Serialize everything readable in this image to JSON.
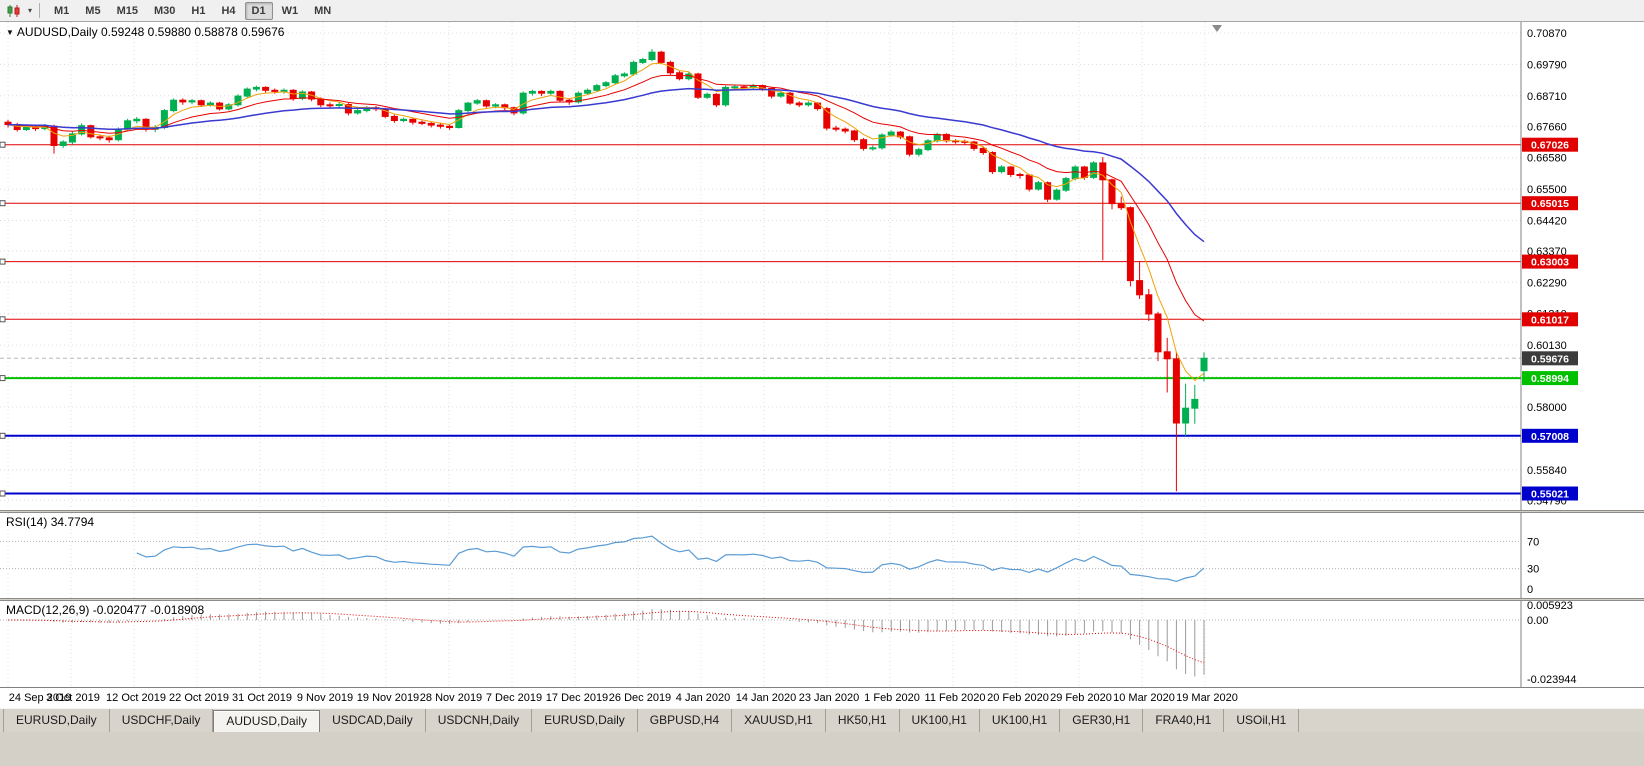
{
  "toolbar": {
    "chart_type_icon": "candlestick-chart-icon",
    "dropdown_icon": "chevron-down-icon",
    "timeframes": [
      {
        "label": "M1",
        "active": false
      },
      {
        "label": "M5",
        "active": false
      },
      {
        "label": "M15",
        "active": false
      },
      {
        "label": "M30",
        "active": false
      },
      {
        "label": "H1",
        "active": false
      },
      {
        "label": "H4",
        "active": false
      },
      {
        "label": "D1",
        "active": true
      },
      {
        "label": "W1",
        "active": false
      },
      {
        "label": "MN",
        "active": false
      }
    ]
  },
  "chart": {
    "symbol": "AUDUSD,Daily",
    "ohlc": "0.59248 0.59880 0.58878 0.59676",
    "open": "0.59248",
    "high": "0.59880",
    "low": "0.58878",
    "close": "0.59676"
  },
  "rsi": {
    "title": "RSI(14)",
    "value": "34.7794",
    "axis_labels": [
      70,
      30,
      0
    ],
    "levels": [
      70,
      30
    ],
    "color": "#5a9bd4"
  },
  "macd": {
    "title": "MACD(12,26,9)",
    "values": "-0.020477 -0.018908",
    "main_value": "-0.020477",
    "signal_value": "-0.018908",
    "axis_labels": [
      "0.005923",
      "0.00",
      "-0.023944"
    ],
    "histogram_color": "#9a9a9a",
    "signal_color": "#e60000"
  },
  "time_axis": {
    "dates": [
      "24 Sep 2019",
      "3 Oct 2019",
      "12 Oct 2019",
      "22 Oct 2019",
      "31 Oct 2019",
      "9 Nov 2019",
      "19 Nov 2019",
      "28 Nov 2019",
      "7 Dec 2019",
      "17 Dec 2019",
      "26 Dec 2019",
      "4 Jan 2020",
      "14 Jan 2020",
      "23 Jan 2020",
      "1 Feb 2020",
      "11 Feb 2020",
      "20 Feb 2020",
      "29 Feb 2020",
      "10 Mar 2020",
      "19 Mar 2020"
    ]
  },
  "tabs": [
    {
      "label": "EURUSD,Daily",
      "active": false
    },
    {
      "label": "USDCHF,Daily",
      "active": false
    },
    {
      "label": "AUDUSD,Daily",
      "active": true
    },
    {
      "label": "USDCAD,Daily",
      "active": false
    },
    {
      "label": "USDCNH,Daily",
      "active": false
    },
    {
      "label": "EURUSD,Daily",
      "active": false
    },
    {
      "label": "GBPUSD,H4",
      "active": false
    },
    {
      "label": "XAUUSD,H1",
      "active": false
    },
    {
      "label": "HK50,H1",
      "active": false
    },
    {
      "label": "UK100,H1",
      "active": false
    },
    {
      "label": "UK100,H1",
      "active": false
    },
    {
      "label": "GER30,H1",
      "active": false
    },
    {
      "label": "FRA40,H1",
      "active": false
    },
    {
      "label": "USOil,H1",
      "active": false
    }
  ],
  "chart_data": {
    "type": "candlestick",
    "symbol": "AUDUSD",
    "timeframe": "Daily",
    "up_color": "#00b050",
    "down_color": "#e60000",
    "grid_color": "#dcdcdc",
    "price_axis_labels": [
      0.7087,
      0.6979,
      0.6871,
      0.6766,
      0.6658,
      0.655,
      0.6442,
      0.6337,
      0.6229,
      0.6121,
      0.6013,
      0.5905,
      0.58,
      0.5692,
      0.5584,
      0.5479
    ],
    "bid_line": {
      "value": 0.59676,
      "label": "0.59676",
      "badge_color": "#3c3c3c"
    },
    "hlines": [
      {
        "value": 0.67026,
        "label": "0.67026",
        "color": "#e00000",
        "width": 1
      },
      {
        "value": 0.65015,
        "label": "0.65015",
        "color": "#e00000",
        "width": 1
      },
      {
        "value": 0.63003,
        "label": "0.63003",
        "color": "#e00000",
        "width": 1
      },
      {
        "value": 0.61017,
        "label": "0.61017",
        "color": "#e00000",
        "width": 1
      },
      {
        "value": 0.58994,
        "label": "0.58994",
        "color": "#00c000",
        "width": 2
      },
      {
        "value": 0.57008,
        "label": "0.57008",
        "color": "#0000cd",
        "width": 2
      },
      {
        "value": 0.55021,
        "label": "0.55021",
        "color": "#0000cd",
        "width": 2
      }
    ],
    "moving_averages": [
      {
        "name": "fast",
        "period": 5,
        "color": "#efa30a",
        "width": 1
      },
      {
        "name": "mid",
        "period": 13,
        "color": "#e60000",
        "width": 1
      },
      {
        "name": "slow",
        "period": 34,
        "color": "#3a3ad0",
        "width": 1.5
      }
    ],
    "candles": [
      [
        0.678,
        0.6788,
        0.6762,
        0.6772
      ],
      [
        0.6772,
        0.6778,
        0.6748,
        0.6755
      ],
      [
        0.6755,
        0.677,
        0.675,
        0.6762
      ],
      [
        0.6762,
        0.6768,
        0.675,
        0.6758
      ],
      [
        0.6758,
        0.6774,
        0.6752,
        0.6766
      ],
      [
        0.6766,
        0.6772,
        0.6672,
        0.67
      ],
      [
        0.67,
        0.6718,
        0.6692,
        0.6712
      ],
      [
        0.6712,
        0.6748,
        0.6704,
        0.674
      ],
      [
        0.674,
        0.6776,
        0.6734,
        0.6768
      ],
      [
        0.6768,
        0.6772,
        0.6724,
        0.673
      ],
      [
        0.673,
        0.6738,
        0.6718,
        0.6726
      ],
      [
        0.6726,
        0.6734,
        0.671,
        0.672
      ],
      [
        0.672,
        0.6762,
        0.6714,
        0.6756
      ],
      [
        0.6756,
        0.6792,
        0.675,
        0.6785
      ],
      [
        0.6785,
        0.6798,
        0.6776,
        0.679
      ],
      [
        0.679,
        0.6794,
        0.6748,
        0.6756
      ],
      [
        0.6756,
        0.677,
        0.6746,
        0.6762
      ],
      [
        0.6762,
        0.6826,
        0.6756,
        0.682
      ],
      [
        0.682,
        0.6862,
        0.6814,
        0.6856
      ],
      [
        0.6856,
        0.6862,
        0.684,
        0.685
      ],
      [
        0.685,
        0.686,
        0.6842,
        0.6854
      ],
      [
        0.6854,
        0.6858,
        0.6832,
        0.684
      ],
      [
        0.684,
        0.6852,
        0.6834,
        0.6846
      ],
      [
        0.6846,
        0.685,
        0.682,
        0.6826
      ],
      [
        0.6826,
        0.6846,
        0.682,
        0.684
      ],
      [
        0.684,
        0.6876,
        0.6834,
        0.687
      ],
      [
        0.687,
        0.69,
        0.6864,
        0.6894
      ],
      [
        0.6894,
        0.6906,
        0.6886,
        0.69
      ],
      [
        0.69,
        0.6904,
        0.6882,
        0.689
      ],
      [
        0.689,
        0.6896,
        0.6878,
        0.6886
      ],
      [
        0.6886,
        0.6896,
        0.6878,
        0.689
      ],
      [
        0.689,
        0.6894,
        0.6854,
        0.6862
      ],
      [
        0.6862,
        0.689,
        0.6856,
        0.6884
      ],
      [
        0.6884,
        0.6888,
        0.6852,
        0.686
      ],
      [
        0.686,
        0.6866,
        0.6832,
        0.684
      ],
      [
        0.684,
        0.6848,
        0.683,
        0.6838
      ],
      [
        0.6838,
        0.685,
        0.6832,
        0.6841
      ],
      [
        0.6841,
        0.6846,
        0.6804,
        0.6812
      ],
      [
        0.6812,
        0.6826,
        0.6806,
        0.682
      ],
      [
        0.682,
        0.6836,
        0.6814,
        0.683
      ],
      [
        0.683,
        0.6836,
        0.6818,
        0.6826
      ],
      [
        0.6826,
        0.683,
        0.6794,
        0.68
      ],
      [
        0.68,
        0.6806,
        0.6778,
        0.6786
      ],
      [
        0.6786,
        0.6796,
        0.678,
        0.679
      ],
      [
        0.679,
        0.6794,
        0.6772,
        0.678
      ],
      [
        0.678,
        0.6786,
        0.677,
        0.6776
      ],
      [
        0.6776,
        0.6782,
        0.6762,
        0.677
      ],
      [
        0.677,
        0.6776,
        0.6758,
        0.6766
      ],
      [
        0.6766,
        0.6772,
        0.6754,
        0.6762
      ],
      [
        0.6762,
        0.6826,
        0.6758,
        0.682
      ],
      [
        0.682,
        0.685,
        0.6814,
        0.6846
      ],
      [
        0.6846,
        0.686,
        0.684,
        0.6854
      ],
      [
        0.6854,
        0.6858,
        0.683,
        0.6836
      ],
      [
        0.6836,
        0.6846,
        0.6828,
        0.684
      ],
      [
        0.684,
        0.6844,
        0.6822,
        0.683
      ],
      [
        0.683,
        0.6834,
        0.6804,
        0.6812
      ],
      [
        0.6812,
        0.6886,
        0.6806,
        0.688
      ],
      [
        0.688,
        0.6892,
        0.6872,
        0.6886
      ],
      [
        0.6886,
        0.689,
        0.687,
        0.688
      ],
      [
        0.688,
        0.6892,
        0.6874,
        0.6886
      ],
      [
        0.6886,
        0.689,
        0.685,
        0.6856
      ],
      [
        0.6856,
        0.6862,
        0.684,
        0.685
      ],
      [
        0.685,
        0.6886,
        0.6844,
        0.688
      ],
      [
        0.688,
        0.6896,
        0.6874,
        0.689
      ],
      [
        0.689,
        0.6912,
        0.6884,
        0.6906
      ],
      [
        0.6906,
        0.6922,
        0.69,
        0.6916
      ],
      [
        0.6916,
        0.6946,
        0.691,
        0.694
      ],
      [
        0.694,
        0.6952,
        0.6934,
        0.6946
      ],
      [
        0.6946,
        0.6992,
        0.694,
        0.6986
      ],
      [
        0.6986,
        0.7002,
        0.698,
        0.6996
      ],
      [
        0.6996,
        0.7032,
        0.699,
        0.7021
      ],
      [
        0.7021,
        0.7026,
        0.698,
        0.6986
      ],
      [
        0.6986,
        0.6992,
        0.6944,
        0.695
      ],
      [
        0.695,
        0.6956,
        0.6924,
        0.693
      ],
      [
        0.693,
        0.6952,
        0.6924,
        0.6946
      ],
      [
        0.6946,
        0.695,
        0.686,
        0.6866
      ],
      [
        0.6866,
        0.6882,
        0.686,
        0.6876
      ],
      [
        0.6876,
        0.688,
        0.6832,
        0.684
      ],
      [
        0.684,
        0.6906,
        0.6834,
        0.69
      ],
      [
        0.69,
        0.691,
        0.6894,
        0.6902
      ],
      [
        0.6902,
        0.6908,
        0.6892,
        0.69
      ],
      [
        0.69,
        0.6912,
        0.6894,
        0.6906
      ],
      [
        0.6906,
        0.691,
        0.6888,
        0.6896
      ],
      [
        0.6896,
        0.69,
        0.6862,
        0.687
      ],
      [
        0.687,
        0.6886,
        0.6864,
        0.688
      ],
      [
        0.688,
        0.6884,
        0.684,
        0.6846
      ],
      [
        0.6846,
        0.6852,
        0.6832,
        0.684
      ],
      [
        0.684,
        0.6852,
        0.6834,
        0.6846
      ],
      [
        0.6846,
        0.685,
        0.682,
        0.6827
      ],
      [
        0.6827,
        0.6832,
        0.6752,
        0.676
      ],
      [
        0.676,
        0.6768,
        0.6748,
        0.6756
      ],
      [
        0.6756,
        0.6762,
        0.6742,
        0.675
      ],
      [
        0.675,
        0.6754,
        0.6712,
        0.672
      ],
      [
        0.672,
        0.6726,
        0.6682,
        0.669
      ],
      [
        0.669,
        0.67,
        0.6682,
        0.6692
      ],
      [
        0.6692,
        0.6742,
        0.6686,
        0.6736
      ],
      [
        0.6736,
        0.6752,
        0.673,
        0.6746
      ],
      [
        0.6746,
        0.675,
        0.6722,
        0.673
      ],
      [
        0.673,
        0.6734,
        0.6662,
        0.667
      ],
      [
        0.667,
        0.6692,
        0.6662,
        0.6686
      ],
      [
        0.6686,
        0.6722,
        0.668,
        0.6716
      ],
      [
        0.6716,
        0.6744,
        0.671,
        0.6738
      ],
      [
        0.6738,
        0.6742,
        0.671,
        0.6716
      ],
      [
        0.6716,
        0.6722,
        0.6706,
        0.6714
      ],
      [
        0.6714,
        0.672,
        0.6702,
        0.6712
      ],
      [
        0.6712,
        0.6716,
        0.6682,
        0.669
      ],
      [
        0.669,
        0.6696,
        0.6668,
        0.6676
      ],
      [
        0.6676,
        0.668,
        0.6602,
        0.661
      ],
      [
        0.661,
        0.6632,
        0.6604,
        0.6626
      ],
      [
        0.6626,
        0.663,
        0.6592,
        0.66
      ],
      [
        0.66,
        0.6606,
        0.6586,
        0.6598
      ],
      [
        0.6598,
        0.6602,
        0.6542,
        0.655
      ],
      [
        0.655,
        0.6578,
        0.6544,
        0.6572
      ],
      [
        0.6572,
        0.6576,
        0.6505,
        0.6515
      ],
      [
        0.6515,
        0.6552,
        0.651,
        0.6546
      ],
      [
        0.6546,
        0.6592,
        0.654,
        0.6586
      ],
      [
        0.6586,
        0.6632,
        0.658,
        0.6626
      ],
      [
        0.6626,
        0.663,
        0.6582,
        0.659
      ],
      [
        0.659,
        0.6646,
        0.6584,
        0.664
      ],
      [
        0.664,
        0.666,
        0.6305,
        0.6582
      ],
      [
        0.6582,
        0.6586,
        0.648,
        0.65
      ],
      [
        0.65,
        0.6524,
        0.6478,
        0.6486
      ],
      [
        0.6486,
        0.649,
        0.6215,
        0.6235
      ],
      [
        0.6235,
        0.6302,
        0.6172,
        0.6186
      ],
      [
        0.6186,
        0.6206,
        0.6096,
        0.612
      ],
      [
        0.612,
        0.6128,
        0.5958,
        0.599
      ],
      [
        0.599,
        0.6038,
        0.585,
        0.5966
      ],
      [
        0.5966,
        0.599,
        0.551,
        0.5745
      ],
      [
        0.5745,
        0.588,
        0.57,
        0.5796
      ],
      [
        0.5796,
        0.5876,
        0.5742,
        0.5826
      ],
      [
        0.59248,
        0.5988,
        0.58878,
        0.59676
      ]
    ]
  }
}
